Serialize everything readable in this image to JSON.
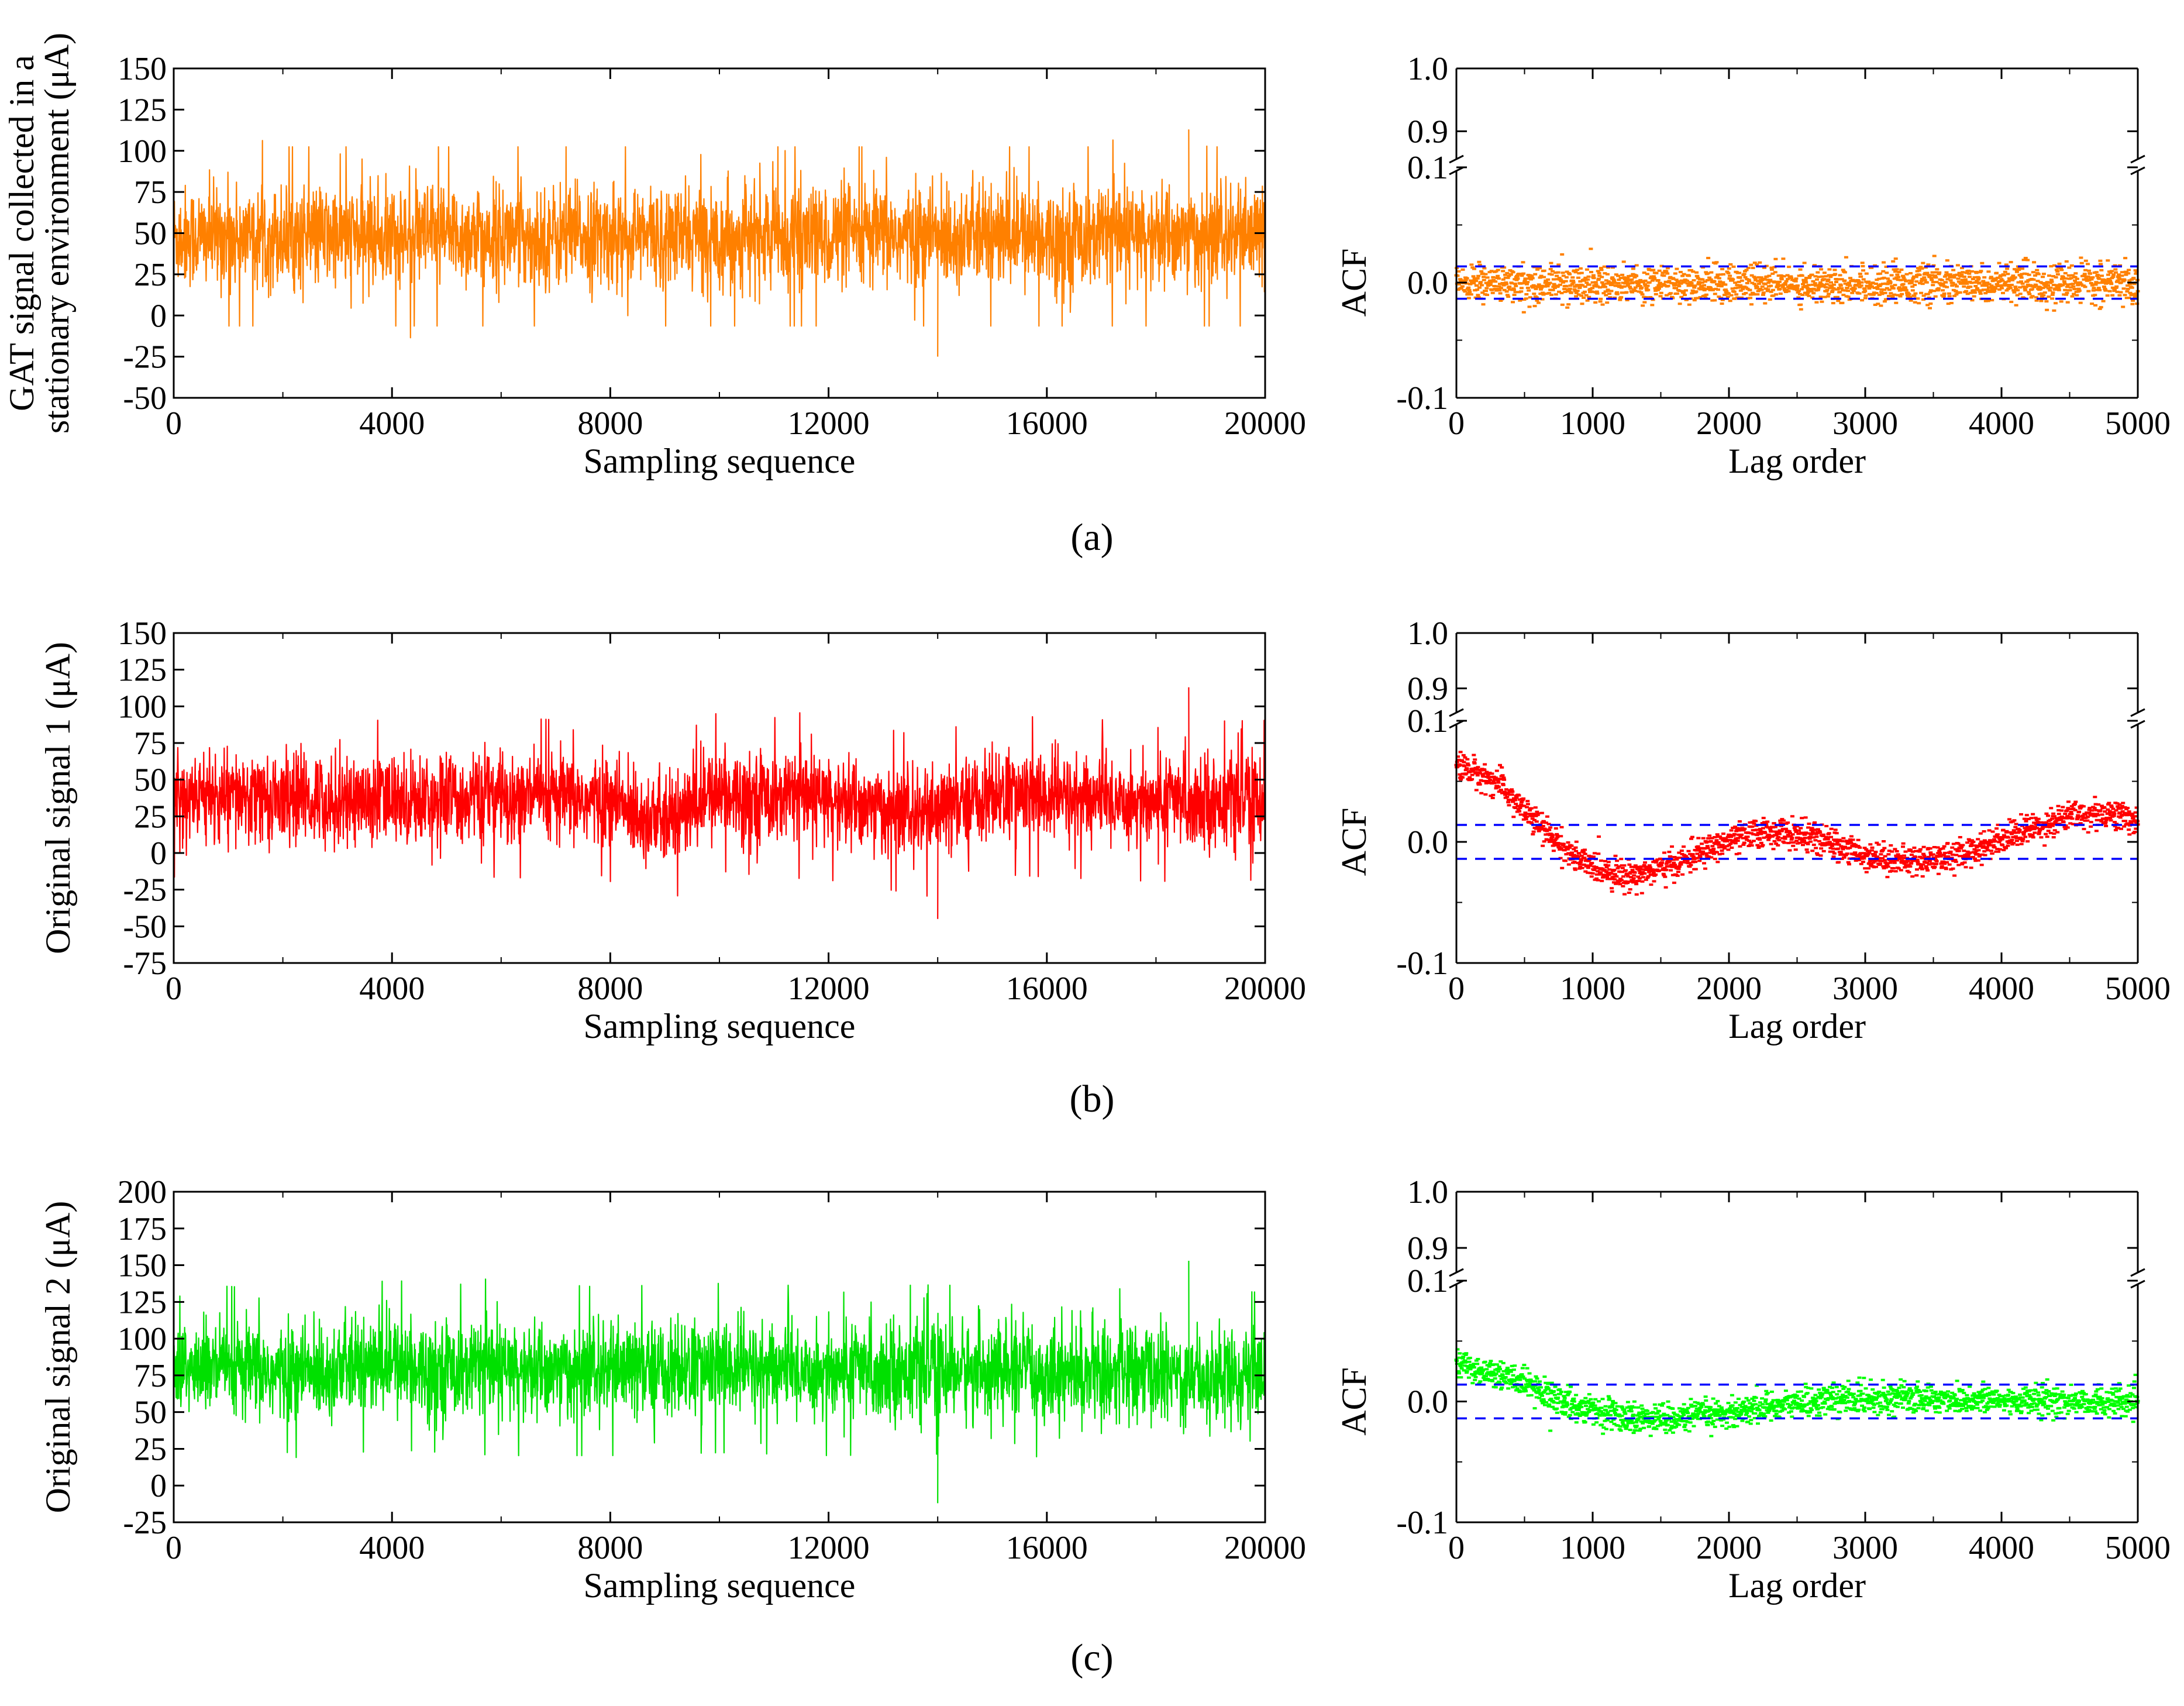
{
  "chart_data": [
    {
      "panel": "a",
      "type": "line",
      "title": "",
      "xlabel": "Sampling sequence",
      "ylabel": [
        "GAT signal collected in a",
        "stationary environment (μA)"
      ],
      "xlim": [
        0,
        20000
      ],
      "ylim": [
        -50,
        150
      ],
      "xticks": [
        0,
        4000,
        8000,
        12000,
        16000,
        20000
      ],
      "yticks": [
        -50,
        -25,
        0,
        25,
        50,
        75,
        100,
        125,
        150
      ],
      "color": "#ff8000",
      "series": [
        {
          "name": "GAT signal",
          "points": 20000,
          "mean": 48,
          "std": 17,
          "min": -25,
          "max": 113
        }
      ]
    },
    {
      "panel": "a",
      "type": "scatter",
      "title": "",
      "xlabel": "Lag order",
      "ylabel": "ACF",
      "xlim": [
        0,
        5000
      ],
      "ylim_lower": [
        -0.1,
        0.1
      ],
      "ylim_upper": [
        0.85,
        1.0
      ],
      "xticks": [
        0,
        1000,
        2000,
        3000,
        4000,
        5000
      ],
      "yticks_lower": [
        "-0.1",
        "0.0",
        "0.1"
      ],
      "yticks_upper": [
        "0.9",
        "1.0"
      ],
      "confidence_bounds": [
        0.014,
        -0.014
      ],
      "color": "#ff8000",
      "bound_color": "#0000ff",
      "series": [
        {
          "name": "ACF",
          "points": 5000,
          "trend": [
            [
              0,
              0.0
            ],
            [
              5000,
              0.0
            ]
          ],
          "spread": 0.008
        }
      ]
    },
    {
      "panel": "b",
      "type": "line",
      "title": "",
      "xlabel": "Sampling sequence",
      "ylabel": "Original signal 1 (μA)",
      "xlim": [
        0,
        20000
      ],
      "ylim": [
        -75,
        150
      ],
      "xticks": [
        0,
        4000,
        8000,
        12000,
        16000,
        20000
      ],
      "yticks": [
        -75,
        -50,
        -25,
        0,
        25,
        50,
        75,
        100,
        125,
        150
      ],
      "color": "#ff0000",
      "series": [
        {
          "name": "Original signal 1",
          "points": 20000,
          "mean_profile": [
            [
              0,
              38
            ],
            [
              2000,
              37
            ],
            [
              4000,
              36
            ],
            [
              6000,
              38
            ],
            [
              8000,
              35
            ],
            [
              9000,
              20
            ],
            [
              10000,
              42
            ],
            [
              11000,
              38
            ],
            [
              12000,
              36
            ],
            [
              13000,
              30
            ],
            [
              13800,
              25
            ],
            [
              15000,
              40
            ],
            [
              16000,
              38
            ],
            [
              18000,
              35
            ],
            [
              20000,
              36
            ]
          ],
          "std": 17,
          "min": -45,
          "max": 113
        }
      ]
    },
    {
      "panel": "b",
      "type": "scatter",
      "title": "",
      "xlabel": "Lag order",
      "ylabel": "ACF",
      "xlim": [
        0,
        5000
      ],
      "ylim_lower": [
        -0.1,
        0.1
      ],
      "ylim_upper": [
        0.85,
        1.0
      ],
      "xticks": [
        0,
        1000,
        2000,
        3000,
        4000,
        5000
      ],
      "yticks_lower": [
        "-0.1",
        "0.0",
        "0.1"
      ],
      "yticks_upper": [
        "0.9",
        "1.0"
      ],
      "confidence_bounds": [
        0.014,
        -0.014
      ],
      "color": "#ff0000",
      "bound_color": "#0000ff",
      "series": [
        {
          "name": "ACF",
          "points": 5000,
          "trend": [
            [
              0,
              0.065
            ],
            [
              300,
              0.05
            ],
            [
              600,
              0.015
            ],
            [
              900,
              -0.015
            ],
            [
              1250,
              -0.028
            ],
            [
              1600,
              -0.018
            ],
            [
              2000,
              0.002
            ],
            [
              2300,
              0.01
            ],
            [
              2600,
              0.005
            ],
            [
              3000,
              -0.01
            ],
            [
              3300,
              -0.015
            ],
            [
              3700,
              -0.01
            ],
            [
              4100,
              0.008
            ],
            [
              4500,
              0.022
            ],
            [
              4800,
              0.025
            ],
            [
              5000,
              0.018
            ]
          ],
          "spread": 0.006
        }
      ]
    },
    {
      "panel": "c",
      "type": "line",
      "title": "",
      "xlabel": "Sampling sequence",
      "ylabel": "Original signal 2 (μA)",
      "xlim": [
        0,
        20000
      ],
      "ylim": [
        -25,
        200
      ],
      "xticks": [
        0,
        4000,
        8000,
        12000,
        16000,
        20000
      ],
      "yticks": [
        -25,
        0,
        25,
        50,
        75,
        100,
        125,
        150,
        175,
        200
      ],
      "color": "#00e000",
      "series": [
        {
          "name": "Original signal 2",
          "points": 20000,
          "mean_profile": [
            [
              0,
              80
            ],
            [
              2000,
              76
            ],
            [
              4000,
              82
            ],
            [
              6000,
              78
            ],
            [
              8000,
              78
            ],
            [
              10000,
              80
            ],
            [
              12000,
              78
            ],
            [
              14000,
              79
            ],
            [
              16000,
              77
            ],
            [
              18000,
              76
            ],
            [
              20000,
              74
            ]
          ],
          "std": 18,
          "min": -12,
          "max": 153
        }
      ]
    },
    {
      "panel": "c",
      "type": "scatter",
      "title": "",
      "xlabel": "Lag order",
      "ylabel": "ACF",
      "xlim": [
        0,
        5000
      ],
      "ylim_lower": [
        -0.1,
        0.1
      ],
      "ylim_upper": [
        0.85,
        1.0
      ],
      "xticks": [
        0,
        1000,
        2000,
        3000,
        4000,
        5000
      ],
      "yticks_lower": [
        "-0.1",
        "0.0",
        "0.1"
      ],
      "yticks_upper": [
        "0.9",
        "1.0"
      ],
      "confidence_bounds": [
        0.014,
        -0.014
      ],
      "color": "#00ff00",
      "bound_color": "#0000ff",
      "series": [
        {
          "name": "ACF",
          "points": 5000,
          "trend": [
            [
              0,
              0.033
            ],
            [
              400,
              0.02
            ],
            [
              800,
              0.0
            ],
            [
              1200,
              -0.012
            ],
            [
              1600,
              -0.013
            ],
            [
              2000,
              -0.008
            ],
            [
              2500,
              0.0
            ],
            [
              3000,
              0.004
            ],
            [
              3500,
              0.003
            ],
            [
              4000,
              0.002
            ],
            [
              5000,
              0.0
            ]
          ],
          "spread": 0.006
        }
      ]
    }
  ],
  "captions": [
    "(a)",
    "(b)",
    "(c)"
  ]
}
